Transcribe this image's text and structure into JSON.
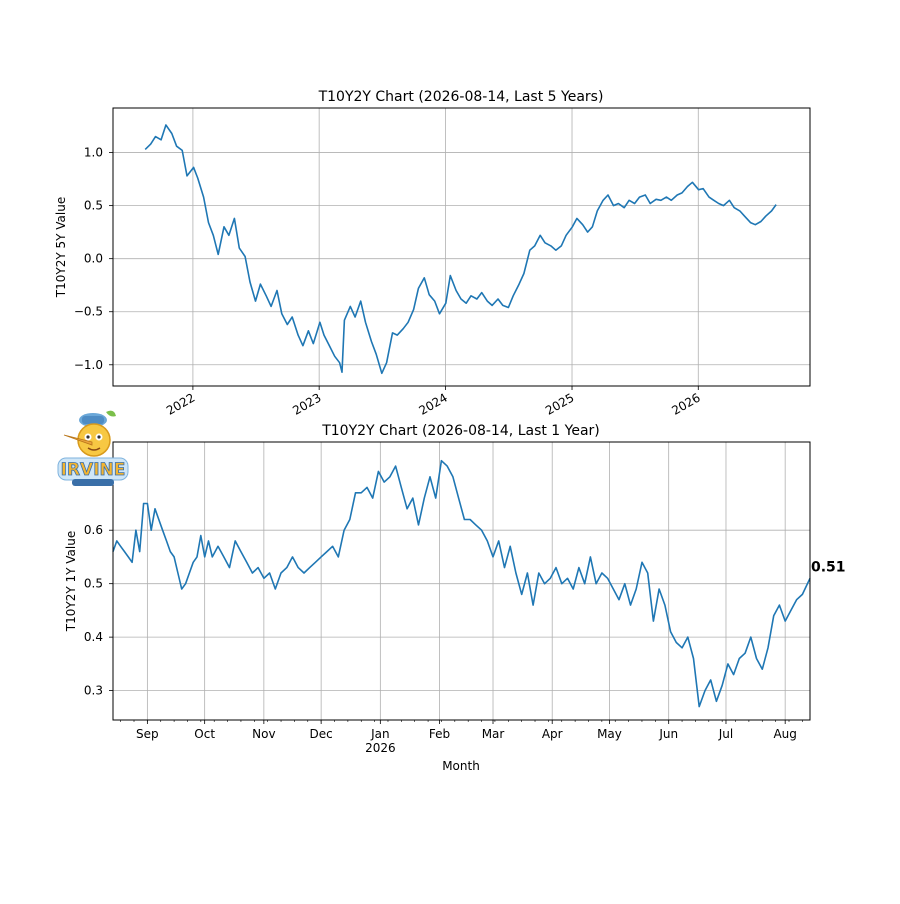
{
  "chart_data": [
    {
      "type": "line",
      "title": "T10Y2Y Chart (2026-08-14, Last 5 Years)",
      "xlabel": "",
      "ylabel": "T10Y2Y 5Y Value",
      "x_tick_labels": [
        "2022",
        "2023",
        "2024",
        "2025",
        "2026"
      ],
      "y_tick_labels": [
        "1.0",
        "0.5",
        "0.0",
        "−0.5",
        "−1.0"
      ],
      "y_ticks": [
        1.0,
        0.5,
        0.0,
        -0.5,
        -1.0
      ],
      "x_range": [
        "2021-05-15",
        "2026-11-20"
      ],
      "ylim": [
        -1.2,
        1.42
      ],
      "grid": true,
      "color": "#1f77b4",
      "series": [
        {
          "x": [
            "2021-08-16",
            "2021-09-01",
            "2021-09-15",
            "2021-10-01",
            "2021-10-15",
            "2021-11-01",
            "2021-11-15",
            "2021-12-01",
            "2021-12-15",
            "2022-01-03",
            "2022-01-15",
            "2022-02-01",
            "2022-02-15",
            "2022-03-01",
            "2022-03-15",
            "2022-04-01",
            "2022-04-15",
            "2022-05-01",
            "2022-05-15",
            "2022-06-01",
            "2022-06-15",
            "2022-07-01",
            "2022-07-15",
            "2022-08-01",
            "2022-08-15",
            "2022-09-01",
            "2022-09-15",
            "2022-10-01",
            "2022-10-15",
            "2022-11-01",
            "2022-11-15",
            "2022-12-01",
            "2022-12-15",
            "2023-01-03",
            "2023-01-15",
            "2023-02-01",
            "2023-02-15",
            "2023-03-01",
            "2023-03-08",
            "2023-03-15",
            "2023-04-01",
            "2023-04-15",
            "2023-05-01",
            "2023-05-15",
            "2023-06-01",
            "2023-06-15",
            "2023-07-01",
            "2023-07-15",
            "2023-08-01",
            "2023-08-15",
            "2023-09-01",
            "2023-09-15",
            "2023-10-01",
            "2023-10-15",
            "2023-11-01",
            "2023-11-15",
            "2023-12-01",
            "2023-12-15",
            "2024-01-02",
            "2024-01-15",
            "2024-02-01",
            "2024-02-15",
            "2024-03-01",
            "2024-03-15",
            "2024-04-01",
            "2024-04-15",
            "2024-05-01",
            "2024-05-15",
            "2024-06-01",
            "2024-06-15",
            "2024-07-01",
            "2024-07-15",
            "2024-08-01",
            "2024-08-15",
            "2024-09-01",
            "2024-09-15",
            "2024-10-01",
            "2024-10-15",
            "2024-11-01",
            "2024-11-15",
            "2024-12-01",
            "2024-12-15",
            "2025-01-02",
            "2025-01-15",
            "2025-02-01",
            "2025-02-15",
            "2025-03-01",
            "2025-03-15",
            "2025-04-01",
            "2025-04-15",
            "2025-05-01",
            "2025-05-15",
            "2025-06-01",
            "2025-06-15",
            "2025-07-01",
            "2025-07-15",
            "2025-08-01",
            "2025-08-15",
            "2025-09-01",
            "2025-09-15",
            "2025-10-01",
            "2025-10-15",
            "2025-11-01",
            "2025-11-15",
            "2025-12-01",
            "2025-12-15",
            "2026-01-02",
            "2026-01-15",
            "2026-02-01",
            "2026-02-15",
            "2026-03-01",
            "2026-03-15",
            "2026-04-01",
            "2026-04-15",
            "2026-05-01",
            "2026-05-15",
            "2026-06-01",
            "2026-06-15",
            "2026-07-01",
            "2026-07-15",
            "2026-08-01",
            "2026-08-14"
          ],
          "y": [
            1.03,
            1.08,
            1.15,
            1.12,
            1.26,
            1.18,
            1.06,
            1.02,
            0.78,
            0.86,
            0.76,
            0.58,
            0.34,
            0.22,
            0.04,
            0.3,
            0.22,
            0.38,
            0.1,
            0.02,
            -0.22,
            -0.4,
            -0.24,
            -0.35,
            -0.45,
            -0.3,
            -0.52,
            -0.62,
            -0.55,
            -0.72,
            -0.82,
            -0.68,
            -0.8,
            -0.6,
            -0.72,
            -0.83,
            -0.92,
            -0.98,
            -1.07,
            -0.58,
            -0.45,
            -0.55,
            -0.4,
            -0.6,
            -0.78,
            -0.9,
            -1.08,
            -0.98,
            -0.7,
            -0.72,
            -0.66,
            -0.6,
            -0.48,
            -0.28,
            -0.18,
            -0.34,
            -0.4,
            -0.52,
            -0.42,
            -0.16,
            -0.3,
            -0.38,
            -0.42,
            -0.35,
            -0.38,
            -0.32,
            -0.4,
            -0.44,
            -0.38,
            -0.44,
            -0.46,
            -0.35,
            -0.24,
            -0.14,
            0.08,
            0.12,
            0.22,
            0.15,
            0.12,
            0.08,
            0.12,
            0.22,
            0.3,
            0.38,
            0.32,
            0.25,
            0.3,
            0.45,
            0.55,
            0.6,
            0.5,
            0.52,
            0.48,
            0.55,
            0.52,
            0.58,
            0.6,
            0.52,
            0.56,
            0.55,
            0.58,
            0.55,
            0.6,
            0.62,
            0.68,
            0.72,
            0.65,
            0.66,
            0.58,
            0.55,
            0.52,
            0.5,
            0.55,
            0.48,
            0.45,
            0.4,
            0.34,
            0.32,
            0.35,
            0.4,
            0.45,
            0.51
          ]
        }
      ]
    },
    {
      "type": "line",
      "title": "T10Y2Y Chart (2026-08-14, Last 1 Year)",
      "xlabel": "Month",
      "ylabel": "T10Y2Y 1Y Value",
      "x_tick_labels": [
        "Sep",
        "Oct",
        "Nov",
        "Dec",
        "Jan",
        "Feb",
        "Mar",
        "Apr",
        "May",
        "Jun",
        "Jul",
        "Aug"
      ],
      "x_tick_year_label": "2026",
      "y_tick_labels": [
        "0.6",
        "0.5",
        "0.4",
        "0.3"
      ],
      "y_ticks": [
        0.6,
        0.5,
        0.4,
        0.3
      ],
      "x_range": [
        "2025-08-14",
        "2026-08-14"
      ],
      "ylim": [
        0.245,
        0.765
      ],
      "grid": true,
      "color": "#1f77b4",
      "last_value_label": "0.51",
      "series": [
        {
          "x": [
            "2025-08-14",
            "2025-08-16",
            "2025-08-18",
            "2025-08-20",
            "2025-08-22",
            "2025-08-24",
            "2025-08-26",
            "2025-08-28",
            "2025-08-30",
            "2025-09-01",
            "2025-09-03",
            "2025-09-05",
            "2025-09-07",
            "2025-09-09",
            "2025-09-11",
            "2025-09-13",
            "2025-09-15",
            "2025-09-17",
            "2025-09-19",
            "2025-09-21",
            "2025-09-23",
            "2025-09-25",
            "2025-09-27",
            "2025-09-29",
            "2025-10-01",
            "2025-10-03",
            "2025-10-05",
            "2025-10-08",
            "2025-10-11",
            "2025-10-14",
            "2025-10-17",
            "2025-10-20",
            "2025-10-23",
            "2025-10-26",
            "2025-10-29",
            "2025-11-01",
            "2025-11-04",
            "2025-11-07",
            "2025-11-10",
            "2025-11-13",
            "2025-11-16",
            "2025-11-19",
            "2025-11-22",
            "2025-11-25",
            "2025-11-28",
            "2025-12-01",
            "2025-12-04",
            "2025-12-07",
            "2025-12-10",
            "2025-12-13",
            "2025-12-16",
            "2025-12-19",
            "2025-12-22",
            "2025-12-25",
            "2025-12-28",
            "2025-12-31",
            "2026-01-03",
            "2026-01-06",
            "2026-01-09",
            "2026-01-12",
            "2026-01-15",
            "2026-01-18",
            "2026-01-21",
            "2026-01-24",
            "2026-01-27",
            "2026-01-30",
            "2026-02-02",
            "2026-02-05",
            "2026-02-08",
            "2026-02-11",
            "2026-02-14",
            "2026-02-17",
            "2026-02-20",
            "2026-02-23",
            "2026-02-26",
            "2026-03-01",
            "2026-03-04",
            "2026-03-07",
            "2026-03-10",
            "2026-03-13",
            "2026-03-16",
            "2026-03-19",
            "2026-03-22",
            "2026-03-25",
            "2026-03-28",
            "2026-03-31",
            "2026-04-03",
            "2026-04-06",
            "2026-04-09",
            "2026-04-12",
            "2026-04-15",
            "2026-04-18",
            "2026-04-21",
            "2026-04-24",
            "2026-04-27",
            "2026-04-30",
            "2026-05-03",
            "2026-05-06",
            "2026-05-09",
            "2026-05-12",
            "2026-05-15",
            "2026-05-18",
            "2026-05-21",
            "2026-05-24",
            "2026-05-27",
            "2026-05-30",
            "2026-06-02",
            "2026-06-05",
            "2026-06-08",
            "2026-06-11",
            "2026-06-14",
            "2026-06-17",
            "2026-06-20",
            "2026-06-23",
            "2026-06-26",
            "2026-06-29",
            "2026-07-02",
            "2026-07-05",
            "2026-07-08",
            "2026-07-11",
            "2026-07-14",
            "2026-07-17",
            "2026-07-20",
            "2026-07-23",
            "2026-07-26",
            "2026-07-29",
            "2026-08-01",
            "2026-08-04",
            "2026-08-07",
            "2026-08-10",
            "2026-08-14"
          ],
          "y": [
            0.56,
            0.58,
            0.57,
            0.56,
            0.55,
            0.54,
            0.6,
            0.56,
            0.65,
            0.65,
            0.6,
            0.64,
            0.62,
            0.6,
            0.58,
            0.56,
            0.55,
            0.52,
            0.49,
            0.5,
            0.52,
            0.54,
            0.55,
            0.59,
            0.55,
            0.58,
            0.55,
            0.57,
            0.55,
            0.53,
            0.58,
            0.56,
            0.54,
            0.52,
            0.53,
            0.51,
            0.52,
            0.49,
            0.52,
            0.53,
            0.55,
            0.53,
            0.52,
            0.53,
            0.54,
            0.55,
            0.56,
            0.57,
            0.55,
            0.6,
            0.62,
            0.67,
            0.67,
            0.68,
            0.66,
            0.71,
            0.69,
            0.7,
            0.72,
            0.68,
            0.64,
            0.66,
            0.61,
            0.66,
            0.7,
            0.66,
            0.73,
            0.72,
            0.7,
            0.66,
            0.62,
            0.62,
            0.61,
            0.6,
            0.58,
            0.55,
            0.58,
            0.53,
            0.57,
            0.52,
            0.48,
            0.52,
            0.46,
            0.52,
            0.5,
            0.51,
            0.53,
            0.5,
            0.51,
            0.49,
            0.53,
            0.5,
            0.55,
            0.5,
            0.52,
            0.51,
            0.49,
            0.47,
            0.5,
            0.46,
            0.49,
            0.54,
            0.52,
            0.43,
            0.49,
            0.46,
            0.41,
            0.39,
            0.38,
            0.4,
            0.36,
            0.27,
            0.3,
            0.32,
            0.28,
            0.31,
            0.35,
            0.33,
            0.36,
            0.37,
            0.4,
            0.36,
            0.34,
            0.38,
            0.44,
            0.46,
            0.43,
            0.45,
            0.47,
            0.48,
            0.51
          ]
        }
      ]
    }
  ]
}
